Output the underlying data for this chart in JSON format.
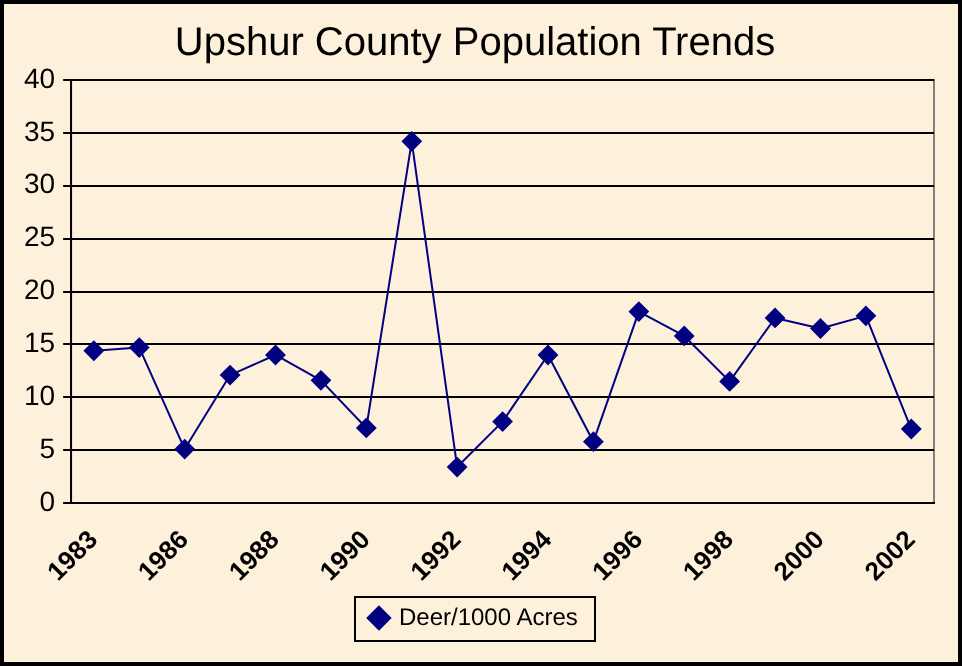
{
  "chart_data": {
    "type": "line",
    "title": "Upshur County Population Trends",
    "categories": [
      "1983",
      null,
      "1986",
      null,
      "1988",
      null,
      "1990",
      null,
      "1992",
      null,
      "1994",
      null,
      "1996",
      null,
      "1998",
      null,
      "2000",
      null,
      "2002"
    ],
    "series": [
      {
        "name": "Deer/1000 Acres",
        "color": "#000080",
        "values": [
          14.4,
          14.7,
          5.1,
          12.1,
          14.0,
          11.6,
          7.1,
          34.2,
          3.4,
          7.7,
          14.0,
          5.8,
          18.1,
          15.8,
          11.5,
          17.5,
          16.5,
          17.7,
          7.0
        ]
      }
    ],
    "ylim": [
      0,
      40
    ],
    "yticks": [
      0,
      5,
      10,
      15,
      20,
      25,
      30,
      35,
      40
    ],
    "grid": "y",
    "legend": "bottom",
    "marker": "diamond",
    "line_style": "solid"
  }
}
